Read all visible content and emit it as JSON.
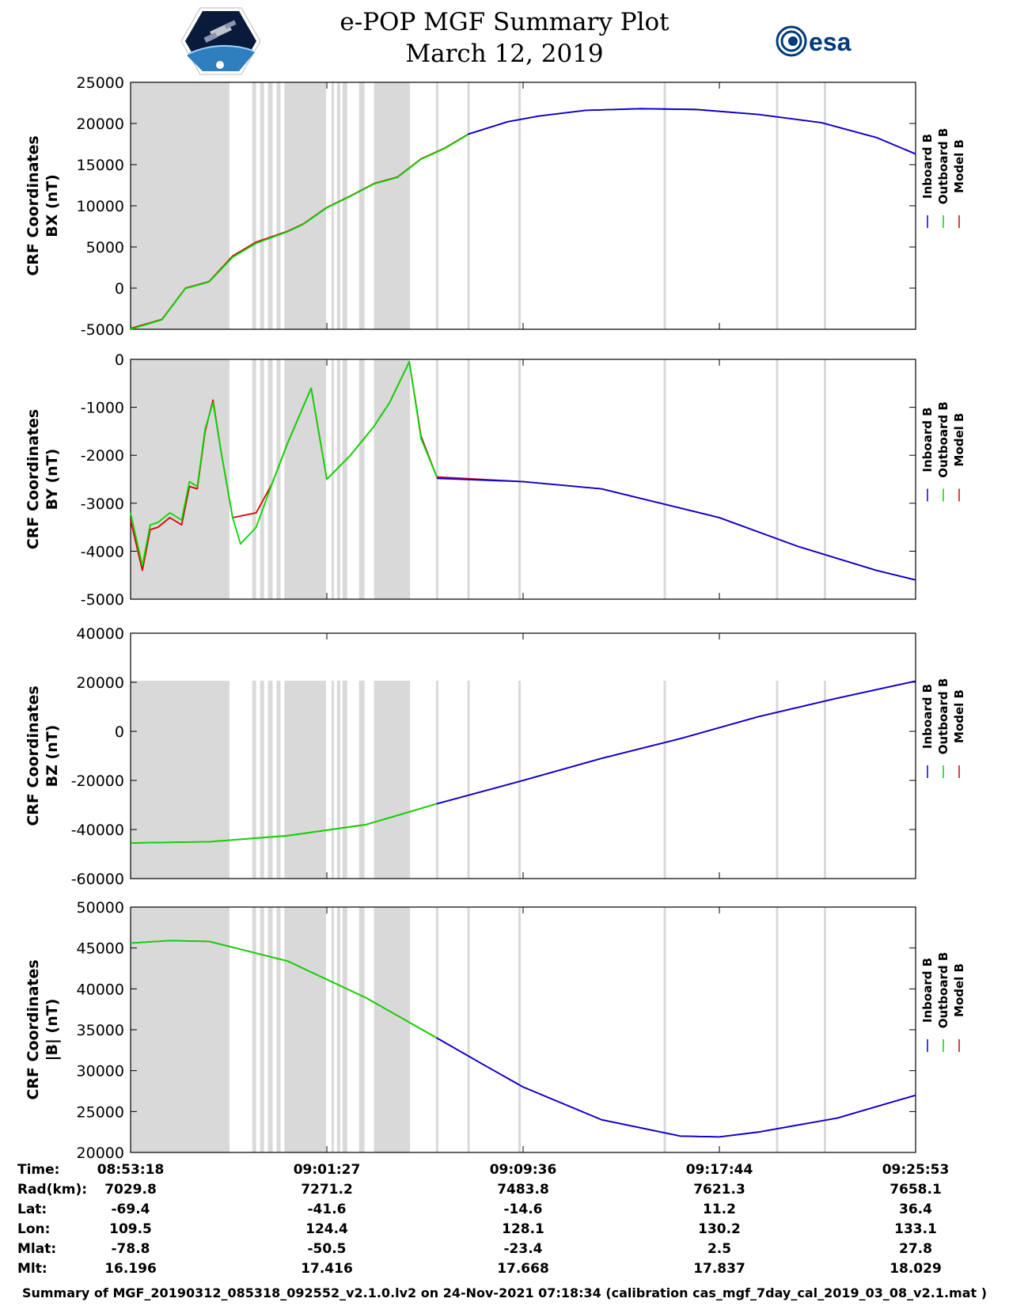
{
  "header": {
    "title_line1": "e-POP MGF Summary Plot",
    "title_line2": "March 12, 2019",
    "logo_left": "cassiope-satellite-logo",
    "logo_right_text": "esa"
  },
  "colors": {
    "inboard": "#0000dd",
    "outboard": "#00dd00",
    "model": "#dd0000",
    "shade": "#d9d9d9"
  },
  "chart_data": {
    "type": "line",
    "time_range": [
      "08:53:18",
      "09:25:53"
    ],
    "x_ticks": [
      "08:53:18",
      "09:01:27",
      "09:09:36",
      "09:17:44",
      "09:25:53"
    ],
    "legend": [
      "Inboard B",
      "Outboard B",
      "Model B"
    ],
    "shaded_intervals_fraction": [
      [
        0.0,
        0.126
      ],
      [
        0.155,
        0.16
      ],
      [
        0.165,
        0.17
      ],
      [
        0.175,
        0.181
      ],
      [
        0.186,
        0.191
      ],
      [
        0.196,
        0.2
      ],
      [
        0.196,
        0.249
      ],
      [
        0.256,
        0.259
      ],
      [
        0.263,
        0.267
      ],
      [
        0.27,
        0.276
      ],
      [
        0.291,
        0.298
      ],
      [
        0.31,
        0.356
      ],
      [
        0.389,
        0.392
      ],
      [
        0.429,
        0.432
      ],
      [
        0.494,
        0.497
      ],
      [
        0.679,
        0.682
      ],
      [
        0.822,
        0.825
      ],
      [
        0.883,
        0.886
      ]
    ],
    "outboard_end_fraction": [
      0.43,
      0.39,
      0.39,
      0.39
    ],
    "panels": [
      {
        "ylabel1": "CRF Coordinates",
        "ylabel2": "BX (nT)",
        "ylim": [
          -5000,
          25000
        ],
        "yticks": [
          "25000",
          "20000",
          "15000",
          "10000",
          "5000",
          "0",
          "-5000"
        ],
        "series": [
          {
            "name": "Model B",
            "x": [
              0,
              0.04,
              0.07,
              0.1,
              0.13,
              0.16,
              0.2,
              0.22,
              0.25,
              0.28,
              0.31,
              0.34,
              0.37,
              0.4,
              0.43,
              0.48,
              0.52,
              0.58,
              0.65,
              0.72,
              0.8,
              0.88,
              0.95,
              1.0
            ],
            "y": [
              -4900,
              -3800,
              0,
              800,
              3900,
              5600,
              6900,
              7800,
              9800,
              11200,
              12700,
              13500,
              15700,
              17000,
              18700,
              20200,
              20900,
              21600,
              21800,
              21700,
              21100,
              20100,
              18300,
              16300
            ]
          },
          {
            "name": "Outboard B",
            "x": [
              0,
              0.04,
              0.07,
              0.1,
              0.13,
              0.16,
              0.2,
              0.22,
              0.25,
              0.28,
              0.31,
              0.34,
              0.37,
              0.4,
              0.43
            ],
            "y": [
              -5000,
              -3850,
              -50,
              750,
              3750,
              5450,
              6850,
              7750,
              9750,
              11150,
              12650,
              13450,
              15650,
              16950,
              18650
            ]
          },
          {
            "name": "Inboard B",
            "x": [
              0.43,
              0.48,
              0.52,
              0.58,
              0.65,
              0.72,
              0.8,
              0.88,
              0.95,
              1.0
            ],
            "y": [
              18700,
              20200,
              20900,
              21600,
              21800,
              21700,
              21100,
              20100,
              18300,
              16300
            ]
          }
        ]
      },
      {
        "ylabel1": "CRF Coordinates",
        "ylabel2": "BY (nT)",
        "ylim": [
          -5000,
          0
        ],
        "yticks": [
          "0",
          "-1000",
          "-2000",
          "-3000",
          "-4000",
          "-5000"
        ],
        "series": [
          {
            "name": "Model B",
            "x": [
              0,
              0.015,
              0.025,
              0.035,
              0.05,
              0.065,
              0.075,
              0.085,
              0.095,
              0.105,
              0.115,
              0.13,
              0.16,
              0.18,
              0.2,
              0.23,
              0.25,
              0.28,
              0.31,
              0.33,
              0.355,
              0.37,
              0.39,
              0.5,
              0.6,
              0.65,
              0.75,
              0.85,
              0.95,
              1.0
            ],
            "y": [
              -3350,
              -4400,
              -3550,
              -3500,
              -3300,
              -3450,
              -2650,
              -2700,
              -1500,
              -850,
              -1900,
              -3300,
              -3200,
              -2600,
              -1750,
              -600,
              -2500,
              -2000,
              -1400,
              -900,
              -50,
              -1600,
              -2450,
              -2550,
              -2700,
              -2900,
              -3300,
              -3900,
              -4400,
              -4600
            ]
          },
          {
            "name": "Outboard B",
            "x": [
              0,
              0.015,
              0.025,
              0.035,
              0.05,
              0.065,
              0.075,
              0.085,
              0.095,
              0.105,
              0.115,
              0.13,
              0.14,
              0.16,
              0.18,
              0.2,
              0.23,
              0.25,
              0.28,
              0.31,
              0.33,
              0.355,
              0.37,
              0.39
            ],
            "y": [
              -3200,
              -4300,
              -3450,
              -3400,
              -3200,
              -3350,
              -2550,
              -2650,
              -1450,
              -900,
              -1900,
              -3300,
              -3850,
              -3500,
              -2600,
              -1750,
              -600,
              -2500,
              -2000,
              -1400,
              -900,
              -50,
              -1650,
              -2450
            ]
          },
          {
            "name": "Inboard B",
            "x": [
              0.39,
              0.5,
              0.6,
              0.65,
              0.75,
              0.85,
              0.95,
              1.0
            ],
            "y": [
              -2480,
              -2550,
              -2700,
              -2900,
              -3300,
              -3900,
              -4400,
              -4600
            ]
          }
        ]
      },
      {
        "ylabel1": "CRF Coordinates",
        "ylabel2": "BZ (nT)",
        "ylim": [
          -60000,
          40000
        ],
        "yticks": [
          "40000",
          "20000",
          "0",
          "-20000",
          "-40000",
          "-60000"
        ],
        "series": [
          {
            "name": "Model B",
            "x": [
              0,
              0.1,
              0.2,
              0.3,
              0.39,
              0.5,
              0.6,
              0.7,
              0.8,
              0.9,
              1.0
            ],
            "y": [
              -45500,
              -45000,
              -42500,
              -38000,
              -29500,
              -20000,
              -11000,
              -3000,
              6000,
              13500,
              20500
            ]
          },
          {
            "name": "Outboard B",
            "x": [
              0,
              0.1,
              0.2,
              0.3,
              0.39
            ],
            "y": [
              -45500,
              -45000,
              -42500,
              -38000,
              -29500
            ]
          },
          {
            "name": "Inboard B",
            "x": [
              0.39,
              0.5,
              0.6,
              0.7,
              0.8,
              0.9,
              1.0
            ],
            "y": [
              -29500,
              -20000,
              -11000,
              -3000,
              6000,
              13500,
              20500
            ]
          }
        ]
      },
      {
        "ylabel1": "CRF Coordinates",
        "ylabel2": "|B| (nT)",
        "ylim": [
          20000,
          50000
        ],
        "yticks": [
          "50000",
          "45000",
          "40000",
          "35000",
          "30000",
          "25000",
          "20000"
        ],
        "series": [
          {
            "name": "Model B",
            "x": [
              0,
              0.05,
              0.1,
              0.2,
              0.3,
              0.39,
              0.45,
              0.5,
              0.6,
              0.7,
              0.75,
              0.8,
              0.9,
              1.0
            ],
            "y": [
              45600,
              45900,
              45800,
              43400,
              38900,
              34000,
              30700,
              28000,
              24000,
              22000,
              21900,
              22500,
              24200,
              27000
            ]
          },
          {
            "name": "Outboard B",
            "x": [
              0,
              0.05,
              0.1,
              0.2,
              0.3,
              0.39
            ],
            "y": [
              45600,
              45900,
              45800,
              43400,
              38900,
              34000
            ]
          },
          {
            "name": "Inboard B",
            "x": [
              0.39,
              0.45,
              0.5,
              0.6,
              0.7,
              0.75,
              0.8,
              0.9,
              1.0
            ],
            "y": [
              34000,
              30700,
              28000,
              24000,
              22000,
              21900,
              22500,
              24200,
              27000
            ]
          }
        ]
      }
    ]
  },
  "info_table": {
    "labels": [
      "Time:",
      "Rad(km):",
      "Lat:",
      "Lon:",
      "Mlat:",
      "Mlt:"
    ],
    "columns": [
      [
        "08:53:18",
        "7029.8",
        "-69.4",
        "109.5",
        "-78.8",
        "16.196"
      ],
      [
        "09:01:27",
        "7271.2",
        "-41.6",
        "124.4",
        "-50.5",
        "17.416"
      ],
      [
        "09:09:36",
        "7483.8",
        "-14.6",
        "128.1",
        "-23.4",
        "17.668"
      ],
      [
        "09:17:44",
        "7621.3",
        "11.2",
        "130.2",
        "2.5",
        "17.837"
      ],
      [
        "09:25:53",
        "7658.1",
        "36.4",
        "133.1",
        "27.8",
        "18.029"
      ]
    ]
  },
  "footer": "Summary of MGF_20190312_085318_092552_v2.1.0.lv2 on 24-Nov-2021 07:18:34 (calibration cas_mgf_7day_cal_2019_03_08_v2.1.mat )"
}
